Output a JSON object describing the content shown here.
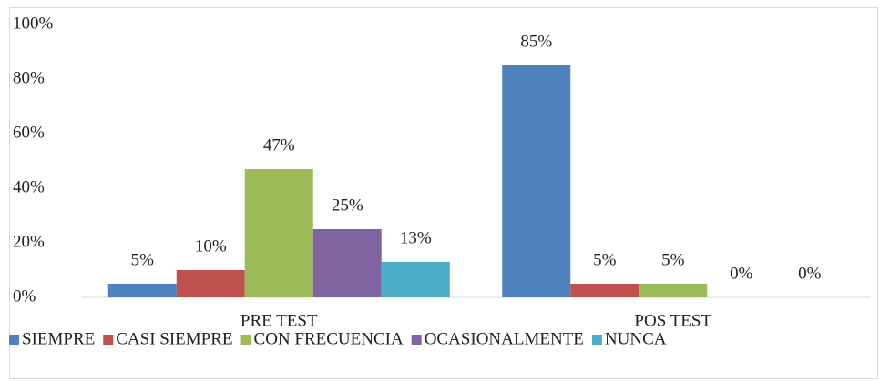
{
  "chart_data": {
    "type": "bar",
    "categories": [
      "PRE TEST",
      "POS TEST"
    ],
    "series": [
      {
        "name": "SIEMPRE",
        "color": "#4f81bd",
        "values": [
          5,
          85
        ],
        "value_labels": [
          "5%",
          "85%"
        ]
      },
      {
        "name": "CASI SIEMPRE",
        "color": "#c0504d",
        "values": [
          10,
          5
        ],
        "value_labels": [
          "10%",
          "5%"
        ]
      },
      {
        "name": "CON FRECUENCIA",
        "color": "#9bbb59",
        "values": [
          47,
          5
        ],
        "value_labels": [
          "47%",
          "5%"
        ]
      },
      {
        "name": "OCASIONALMENTE",
        "color": "#8064a2",
        "values": [
          25,
          0
        ],
        "value_labels": [
          "25%",
          "0%"
        ]
      },
      {
        "name": "NUNCA",
        "color": "#4bacc6",
        "values": [
          13,
          0
        ],
        "value_labels": [
          "13%",
          "0%"
        ]
      }
    ],
    "ylim": [
      0,
      100
    ],
    "yticks": [
      {
        "value": 0,
        "label": "0%"
      },
      {
        "value": 20,
        "label": "20%"
      },
      {
        "value": 40,
        "label": "40%"
      },
      {
        "value": 60,
        "label": "60%"
      },
      {
        "value": 80,
        "label": "80%"
      },
      {
        "value": 100,
        "label": "100%"
      }
    ],
    "legend": "bottom"
  }
}
